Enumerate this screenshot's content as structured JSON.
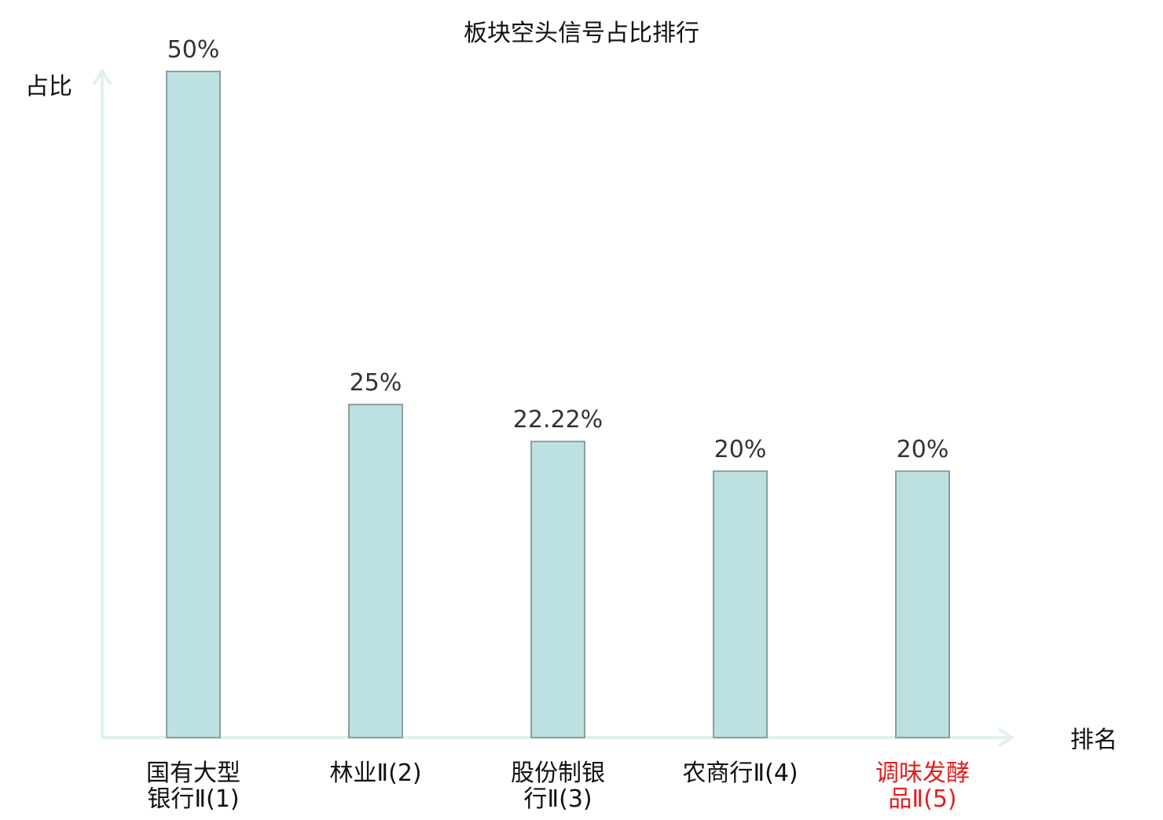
{
  "chart_data": {
    "type": "bar",
    "title": "板块空头信号占比排行",
    "ylabel": "占比",
    "xlabel": "排名",
    "ylim": [
      0,
      50
    ],
    "grid": false,
    "categories": [
      [
        "国有大型",
        "银行Ⅱ(1)"
      ],
      [
        "林业Ⅱ(2)"
      ],
      [
        "股份制银",
        "行Ⅱ(3)"
      ],
      [
        "农商行Ⅱ(4)"
      ],
      [
        "调味发酵",
        "品Ⅱ(5)"
      ]
    ],
    "highlighted_category_index": 4,
    "values": [
      50,
      25,
      22.22,
      20,
      20
    ],
    "value_labels": [
      "50%",
      "25%",
      "22.22%",
      "20%",
      "20%"
    ],
    "colors": {
      "bar_fill": "#bde0e1",
      "bar_stroke": "#8aa0a0",
      "axis": "#dff2f0",
      "text": "#333333",
      "title": "#111111",
      "highlight": "#e02020"
    }
  }
}
